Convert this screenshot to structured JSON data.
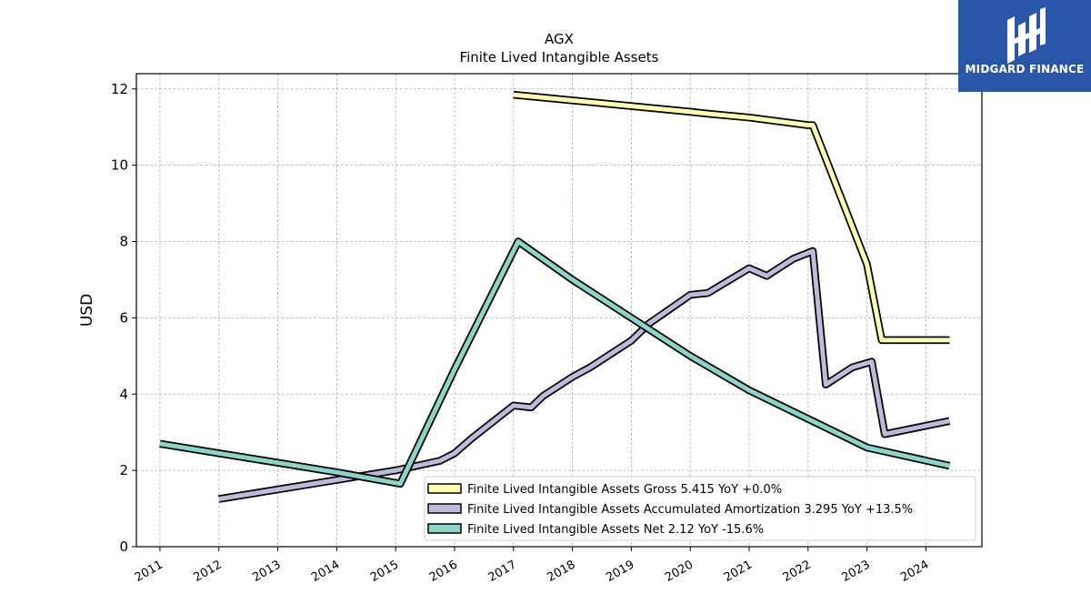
{
  "logo": {
    "text": "MIDGARD FINANCE"
  },
  "chart_data": {
    "type": "line",
    "title": "AGX",
    "subtitle": "Finite Lived Intangible Assets",
    "xlabel": "",
    "ylabel": "USD",
    "xlim": [
      2010.6,
      2024.95
    ],
    "ylim": [
      0,
      12.4
    ],
    "x_ticks": [
      "2011",
      "2012",
      "2013",
      "2014",
      "2015",
      "2016",
      "2017",
      "2018",
      "2019",
      "2020",
      "2021",
      "2022",
      "2023",
      "2024"
    ],
    "y_ticks": [
      0,
      2,
      4,
      6,
      8,
      10,
      12
    ],
    "grid": true,
    "legend_position": "lower-right",
    "colors": {
      "gross": "#ffffb3",
      "amortization": "#bebada",
      "net": "#8dd3c7",
      "outline": "#000000"
    },
    "series": [
      {
        "key": "gross",
        "name": "Finite Lived Intangible Assets Gross  5.415 YoY +0.0%",
        "x": [
          2017.0,
          2018.0,
          2019.0,
          2020.0,
          2020.3,
          2021.0,
          2022.0,
          2022.08,
          2023.0,
          2023.25,
          2024.4
        ],
        "y": [
          11.85,
          11.7,
          11.55,
          11.4,
          11.35,
          11.25,
          11.05,
          11.05,
          7.4,
          5.415,
          5.415
        ]
      },
      {
        "key": "amortization",
        "name": "Finite Lived Intangible Assets Accumulated Amortization  3.295 YoY +13.5%",
        "x": [
          2012.0,
          2013.0,
          2014.0,
          2015.0,
          2015.75,
          2016.0,
          2016.3,
          2017.0,
          2017.3,
          2017.5,
          2018.0,
          2018.3,
          2019.0,
          2019.3,
          2020.0,
          2020.3,
          2021.0,
          2021.3,
          2021.75,
          2022.08,
          2022.3,
          2022.75,
          2023.08,
          2023.3,
          2024.4
        ],
        "y": [
          1.25,
          1.5,
          1.75,
          2.0,
          2.25,
          2.45,
          2.85,
          3.7,
          3.65,
          3.95,
          4.45,
          4.7,
          5.4,
          5.85,
          6.6,
          6.65,
          7.3,
          7.1,
          7.55,
          7.75,
          4.25,
          4.7,
          4.85,
          2.95,
          3.295
        ]
      },
      {
        "key": "net",
        "name": "Finite Lived Intangible Assets Net  2.12 YoY -15.6%",
        "x": [
          2011.0,
          2012.0,
          2013.0,
          2014.0,
          2015.08,
          2016.0,
          2017.08,
          2018.0,
          2019.0,
          2020.0,
          2021.0,
          2022.0,
          2023.0,
          2024.4
        ],
        "y": [
          2.7,
          2.45,
          2.2,
          1.95,
          1.65,
          4.65,
          8.0,
          7.0,
          6.0,
          5.0,
          4.1,
          3.35,
          2.6,
          2.12
        ]
      }
    ]
  }
}
